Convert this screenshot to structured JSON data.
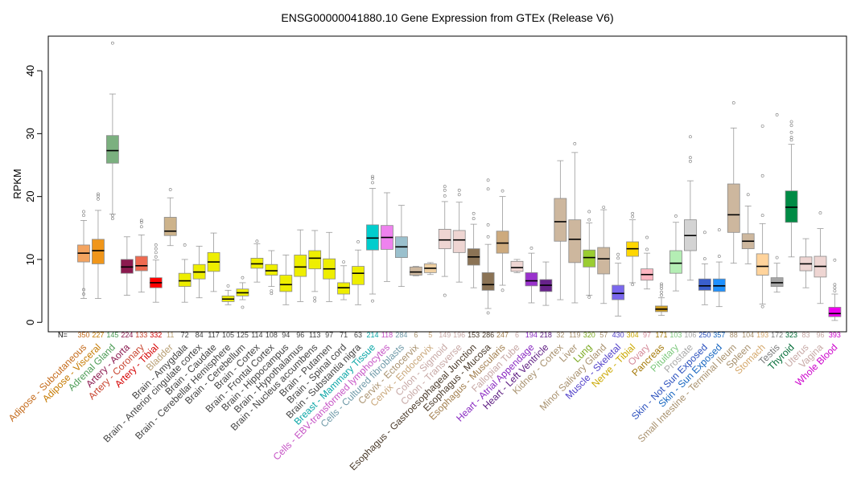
{
  "chart_data": {
    "type": "boxplot",
    "title": "ENSG00000041880.10 Gene Expression from GTEx (Release V6)",
    "ylabel": "RPKM",
    "ylim": [
      -1.5,
      45.5
    ],
    "yticks": [
      0,
      10,
      20,
      30,
      40
    ],
    "n_prefix": "N=",
    "categories": [
      {
        "label": "Adipose - Subcutaneous",
        "n": "350",
        "color": "#F4A460",
        "text": "#c46a1a",
        "stats": [
          3.8,
          9.6,
          11.0,
          12.3,
          16.2
        ],
        "outliers": [
          4.5,
          5.2,
          17.0,
          17.6
        ]
      },
      {
        "label": "Adipose - Visceral",
        "n": "227",
        "color": "#F0961A",
        "text": "#c57a00",
        "stats": [
          3.8,
          9.3,
          11.4,
          13.2,
          17.8
        ],
        "outliers": [
          19.6,
          20.1,
          20.4
        ]
      },
      {
        "label": "Adrenal Gland",
        "n": "145",
        "color": "#7BB07F",
        "text": "#4b9b54",
        "stats": [
          17.2,
          25.3,
          27.3,
          29.7,
          36.3
        ],
        "outliers": [
          16.5,
          17.0,
          44.4
        ]
      },
      {
        "label": "Artery - Aorta",
        "n": "224",
        "color": "#8B1A4F",
        "text": "#8b1a4f",
        "stats": [
          4.3,
          7.8,
          8.8,
          10.0,
          13.6
        ],
        "outliers": []
      },
      {
        "label": "Artery - Coronary",
        "n": "133",
        "color": "#EE6A50",
        "text": "#c8432d",
        "stats": [
          4.8,
          8.2,
          9.0,
          10.5,
          13.9
        ],
        "outliers": [
          15.2,
          15.9,
          16.2
        ]
      },
      {
        "label": "Artery - Tibial",
        "n": "332",
        "color": "#FF0000",
        "text": "#d40000",
        "stats": [
          3.2,
          5.5,
          6.3,
          7.1,
          9.9
        ],
        "outliers": [
          10.4,
          11.1,
          11.7,
          12.3
        ]
      },
      {
        "label": "Bladder",
        "n": "11",
        "color": "#CDB38B",
        "text": "#b89e72",
        "stats": [
          12.2,
          13.8,
          14.5,
          16.7,
          19.8
        ],
        "outliers": [
          21.1
        ]
      },
      {
        "label": "Brain - Amygdala",
        "n": "72",
        "color": "#EEEE00",
        "text": "#444444",
        "stats": [
          3.2,
          5.7,
          6.6,
          7.8,
          10.0
        ],
        "outliers": [
          12.3
        ]
      },
      {
        "label": "Brain - Anterior cingulate cortex",
        "n": "84",
        "color": "#EEEE00",
        "text": "#444444",
        "stats": [
          3.9,
          6.9,
          8.0,
          9.2,
          12.1
        ],
        "outliers": []
      },
      {
        "label": "Brain - Caudate",
        "n": "117",
        "color": "#EEEE00",
        "text": "#444444",
        "stats": [
          4.9,
          8.1,
          9.6,
          11.1,
          14.2
        ],
        "outliers": []
      },
      {
        "label": "Brain - Cerebellar Hemisphere",
        "n": "105",
        "color": "#EEEE00",
        "text": "#444444",
        "stats": [
          2.8,
          3.3,
          3.7,
          4.2,
          5.1
        ],
        "outliers": [
          5.8
        ]
      },
      {
        "label": "Brain - Cerebellum",
        "n": "125",
        "color": "#EEEE00",
        "text": "#444444",
        "stats": [
          3.6,
          4.2,
          4.7,
          5.3,
          6.3
        ],
        "outliers": [
          2.4,
          7.1
        ]
      },
      {
        "label": "Brain - Cortex",
        "n": "114",
        "color": "#EEEE00",
        "text": "#444444",
        "stats": [
          6.4,
          8.6,
          9.3,
          10.2,
          12.5
        ],
        "outliers": [
          12.9
        ]
      },
      {
        "label": "Brain - Frontal Cortex",
        "n": "108",
        "color": "#EEEE00",
        "text": "#444444",
        "stats": [
          5.7,
          7.5,
          8.2,
          9.2,
          11.4
        ],
        "outliers": [
          4.6,
          5.0
        ]
      },
      {
        "label": "Brain - Hippocampus",
        "n": "94",
        "color": "#EEEE00",
        "text": "#444444",
        "stats": [
          2.8,
          4.9,
          6.0,
          7.5,
          10.7
        ],
        "outliers": []
      },
      {
        "label": "Brain - Hypothalamus",
        "n": "96",
        "color": "#EEEE00",
        "text": "#444444",
        "stats": [
          3.3,
          7.3,
          8.8,
          10.7,
          14.7
        ],
        "outliers": []
      },
      {
        "label": "Brain - Nucleus accumbens",
        "n": "113",
        "color": "#EEEE00",
        "text": "#444444",
        "stats": [
          4.9,
          8.5,
          10.2,
          11.4,
          14.6
        ],
        "outliers": [
          3.4,
          3.9
        ]
      },
      {
        "label": "Brain - Putamen",
        "n": "97",
        "color": "#EEEE00",
        "text": "#444444",
        "stats": [
          3.3,
          6.9,
          8.5,
          10.1,
          14.3
        ],
        "outliers": []
      },
      {
        "label": "Brain - Spinal cord",
        "n": "71",
        "color": "#EEEE00",
        "text": "#444444",
        "stats": [
          3.6,
          4.5,
          5.5,
          6.3,
          9.0
        ],
        "outliers": [
          9.6
        ]
      },
      {
        "label": "Brain - Substantia nigra",
        "n": "63",
        "color": "#EEEE00",
        "text": "#444444",
        "stats": [
          2.8,
          6.0,
          7.8,
          8.9,
          11.5
        ],
        "outliers": [
          12.8
        ]
      },
      {
        "label": "Breast - Mammary Tissue",
        "n": "214",
        "color": "#00CDCD",
        "text": "#0aa6a6",
        "stats": [
          4.5,
          11.5,
          13.4,
          15.5,
          21.3
        ],
        "outliers": [
          3.4,
          22.2,
          22.9,
          23.2
        ]
      },
      {
        "label": "Cells - EBV-transformed lymphocytes",
        "n": "118",
        "color": "#EE82EE",
        "text": "#c552c5",
        "stats": [
          6.5,
          11.6,
          13.5,
          15.4,
          20.6
        ],
        "outliers": []
      },
      {
        "label": "Cells - Cultured fibroblasts",
        "n": "284",
        "color": "#9AC0CD",
        "text": "#6f9aa8",
        "stats": [
          5.7,
          10.3,
          12.0,
          13.6,
          18.6
        ],
        "outliers": []
      },
      {
        "label": "Cervix - Ectocervix",
        "n": "6",
        "color": "#CDB79E",
        "text": "#a8916e",
        "stats": [
          7.4,
          7.5,
          8.0,
          8.8,
          8.9
        ],
        "outliers": []
      },
      {
        "label": "Cervix - Endocervix",
        "n": "5",
        "color": "#EECFA1",
        "text": "#c9a77a",
        "stats": [
          7.6,
          7.9,
          8.6,
          9.3,
          9.5
        ],
        "outliers": []
      },
      {
        "label": "Colon - Sigmoid",
        "n": "149",
        "color": "#EED5D2",
        "text": "#c7a8a5",
        "stats": [
          7.3,
          11.7,
          13.1,
          14.8,
          19.2
        ],
        "outliers": [
          4.3,
          20.1,
          21.0,
          21.6
        ]
      },
      {
        "label": "Colon - Transverse",
        "n": "196",
        "color": "#EED5D2",
        "text": "#c7a8a5",
        "stats": [
          6.4,
          11.1,
          13.1,
          14.6,
          19.1
        ],
        "outliers": [
          20.3,
          21.0
        ]
      },
      {
        "label": "Esophagus - Gastroesophageal Junction",
        "n": "153",
        "color": "#8B7355",
        "text": "#4a3a2a",
        "stats": [
          5.5,
          9.1,
          10.4,
          11.7,
          15.6
        ],
        "outliers": [
          16.5,
          17.3
        ]
      },
      {
        "label": "Esophagus - Mucosa",
        "n": "286",
        "color": "#8B7355",
        "text": "#4a3a2a",
        "stats": [
          2.2,
          5.1,
          6.0,
          7.9,
          12.4
        ],
        "outliers": [
          1.5,
          13.6,
          15.5,
          21.2,
          22.6
        ]
      },
      {
        "label": "Esophagus - Muscularis",
        "n": "247",
        "color": "#CDAA7D",
        "text": "#a38050",
        "stats": [
          5.9,
          11.0,
          12.6,
          14.5,
          20.0
        ],
        "outliers": [
          5.1,
          20.9
        ]
      },
      {
        "label": "Fallopian Tube",
        "n": "6",
        "color": "#EED5D2",
        "text": "#c7a8a5",
        "stats": [
          7.9,
          8.1,
          8.7,
          9.7,
          10.0
        ],
        "outliers": []
      },
      {
        "label": "Heart - Atrial Appendage",
        "n": "194",
        "color": "#9A32CD",
        "text": "#8a2bc2",
        "stats": [
          3.1,
          5.8,
          6.6,
          7.9,
          11.0
        ],
        "outliers": [
          11.8
        ]
      },
      {
        "label": "Heart - Left Ventricle",
        "n": "218",
        "color": "#68228B",
        "text": "#5b1a80",
        "stats": [
          2.7,
          4.9,
          5.9,
          6.8,
          9.6
        ],
        "outliers": []
      },
      {
        "label": "Kidney - Cortex",
        "n": "32",
        "color": "#CDB79E",
        "text": "#a8916e",
        "stats": [
          3.6,
          12.9,
          16.0,
          19.7,
          25.7
        ],
        "outliers": []
      },
      {
        "label": "Liver",
        "n": "119",
        "color": "#CDB79E",
        "text": "#a8916e",
        "stats": [
          3.1,
          9.5,
          13.2,
          16.3,
          27.0
        ],
        "outliers": [
          28.4
        ]
      },
      {
        "label": "Lung",
        "n": "320",
        "color": "#9ACD32",
        "text": "#7aa81e",
        "stats": [
          4.3,
          8.8,
          10.3,
          11.5,
          15.8
        ],
        "outliers": [
          4.0,
          16.3,
          17.6
        ]
      },
      {
        "label": "Minor Salivary Gland",
        "n": "57",
        "color": "#CDB79E",
        "text": "#a8916e",
        "stats": [
          3.0,
          7.7,
          10.1,
          11.9,
          17.9
        ],
        "outliers": [
          18.3
        ]
      },
      {
        "label": "Muscle - Skeletal",
        "n": "430",
        "color": "#7A67EE",
        "text": "#5140c9",
        "stats": [
          1.0,
          3.6,
          4.6,
          5.9,
          9.4
        ],
        "outliers": [
          10.2,
          10.8
        ]
      },
      {
        "label": "Nerve - Tibial",
        "n": "304",
        "color": "#FFD700",
        "text": "#caa800",
        "stats": [
          6.3,
          10.5,
          11.7,
          12.8,
          16.3
        ],
        "outliers": [
          6.0,
          16.8,
          17.3
        ]
      },
      {
        "label": "Ovary",
        "n": "97",
        "color": "#FFB6C1",
        "text": "#d48a98",
        "stats": [
          5.3,
          6.7,
          7.6,
          8.5,
          11.0
        ],
        "outliers": [
          11.6,
          13.5
        ]
      },
      {
        "label": "Pancreas",
        "n": "171",
        "color": "#CD9B1D",
        "text": "#a57a0a",
        "stats": [
          1.1,
          1.7,
          2.1,
          2.6,
          3.9
        ],
        "outliers": [
          4.3,
          4.8,
          5.4,
          5.8,
          6.1
        ]
      },
      {
        "label": "Pituitary",
        "n": "103",
        "color": "#B4EEB4",
        "text": "#7cc87c",
        "stats": [
          5.0,
          7.8,
          9.4,
          11.4,
          15.9
        ],
        "outliers": [
          16.9
        ]
      },
      {
        "label": "Prostate",
        "n": "106",
        "color": "#D3D3D3",
        "text": "#a9a9a9",
        "stats": [
          6.7,
          11.4,
          13.8,
          16.3,
          22.5
        ],
        "outliers": [
          25.6,
          26.2,
          29.5
        ]
      },
      {
        "label": "Skin - Not Sun Exposed",
        "n": "250",
        "color": "#3A5FCD",
        "text": "#2a4fbd",
        "stats": [
          2.8,
          5.1,
          5.8,
          6.9,
          9.3
        ],
        "outliers": [
          10.1,
          14.3
        ]
      },
      {
        "label": "Skin - Sun Exposed",
        "n": "357",
        "color": "#1E90FF",
        "text": "#1565c0",
        "stats": [
          2.5,
          4.9,
          5.8,
          6.9,
          9.6
        ],
        "outliers": [
          10.5,
          14.7
        ]
      },
      {
        "label": "Small Intestine - Terminal Ileum",
        "n": "88",
        "color": "#CDB79E",
        "text": "#a8916e",
        "stats": [
          9.4,
          14.3,
          17.1,
          22.0,
          30.9
        ],
        "outliers": [
          34.9
        ]
      },
      {
        "label": "Spleen",
        "n": "104",
        "color": "#CDB79E",
        "text": "#a8916e",
        "stats": [
          9.3,
          11.7,
          12.9,
          14.1,
          18.5
        ],
        "outliers": [
          20.3
        ]
      },
      {
        "label": "Stomach",
        "n": "193",
        "color": "#FFD39B",
        "text": "#d4a76a",
        "stats": [
          2.9,
          7.5,
          8.9,
          10.9,
          15.7
        ],
        "outliers": [
          2.5,
          17.0,
          23.3,
          31.2
        ]
      },
      {
        "label": "Testis",
        "n": "172",
        "color": "#A6A6A6",
        "text": "#7a7a7a",
        "stats": [
          4.8,
          5.7,
          6.3,
          7.1,
          9.4
        ],
        "outliers": [
          10.3,
          33.0
        ]
      },
      {
        "label": "Thyroid",
        "n": "323",
        "color": "#008B45",
        "text": "#006b35",
        "stats": [
          10.4,
          15.9,
          18.3,
          20.9,
          28.3
        ],
        "outliers": [
          29.0,
          29.4,
          30.2,
          31.3,
          31.9
        ]
      },
      {
        "label": "Uterus",
        "n": "83",
        "color": "#EED5D2",
        "text": "#c7a8a5",
        "stats": [
          5.5,
          8.2,
          9.3,
          10.4,
          13.3
        ],
        "outliers": []
      },
      {
        "label": "Vagina",
        "n": "96",
        "color": "#EED5D2",
        "text": "#c7a8a5",
        "stats": [
          3.0,
          7.2,
          8.9,
          10.5,
          14.9
        ],
        "outliers": [
          17.4
        ]
      },
      {
        "label": "Whole Blood",
        "n": "393",
        "color": "#EE00EE",
        "text": "#cc00cc",
        "stats": [
          0.3,
          0.9,
          1.4,
          2.4,
          4.5
        ],
        "outliers": [
          5.0,
          5.5,
          6.0,
          9.9
        ]
      }
    ]
  }
}
